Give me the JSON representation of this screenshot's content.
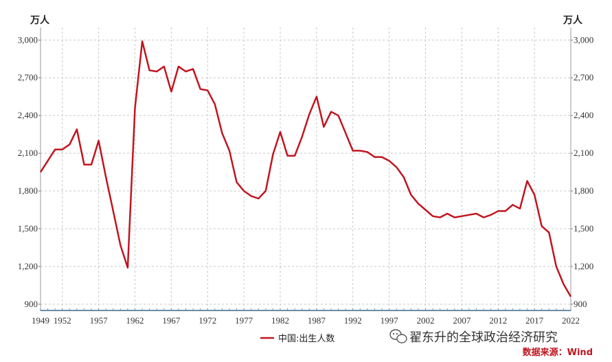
{
  "chart_data": {
    "type": "line",
    "unit_left": "万人",
    "unit_right": "万人",
    "ylim": [
      850,
      3100
    ],
    "xlim": [
      1949,
      2022
    ],
    "y_ticks": [
      900,
      1200,
      1500,
      1800,
      2100,
      2400,
      2700,
      3000
    ],
    "y_tick_labels": [
      "900",
      "1,200",
      "1,500",
      "1,800",
      "2,100",
      "2,400",
      "2,700",
      "3,000"
    ],
    "x_ticks": [
      1949,
      1952,
      1957,
      1962,
      1967,
      1972,
      1977,
      1982,
      1987,
      1992,
      1997,
      2002,
      2007,
      2012,
      2017,
      2022
    ],
    "x_tick_labels": [
      "1949",
      "1952",
      "1957",
      "1962",
      "1967",
      "1972",
      "1977",
      "1982",
      "1987",
      "1992",
      "1997",
      "2002",
      "2007",
      "2012",
      "2017",
      "2022"
    ],
    "grid": true,
    "legend_position": "bottom-center",
    "series": [
      {
        "name": "中国:出生人数",
        "color": "#c0151f",
        "x": [
          1949,
          1950,
          1951,
          1952,
          1953,
          1954,
          1955,
          1956,
          1957,
          1958,
          1959,
          1960,
          1961,
          1962,
          1963,
          1964,
          1965,
          1966,
          1967,
          1968,
          1969,
          1970,
          1971,
          1972,
          1973,
          1974,
          1975,
          1976,
          1977,
          1978,
          1979,
          1980,
          1981,
          1982,
          1983,
          1984,
          1985,
          1986,
          1987,
          1988,
          1989,
          1990,
          1991,
          1992,
          1993,
          1994,
          1995,
          1996,
          1997,
          1998,
          1999,
          2000,
          2001,
          2002,
          2003,
          2004,
          2005,
          2006,
          2007,
          2008,
          2009,
          2010,
          2011,
          2012,
          2013,
          2014,
          2015,
          2016,
          2017,
          2018,
          2019,
          2020,
          2021,
          2022
        ],
        "values": [
          1950,
          2040,
          2130,
          2130,
          2170,
          2290,
          2010,
          2010,
          2200,
          1910,
          1640,
          1370,
          1190,
          2460,
          2990,
          2760,
          2750,
          2790,
          2590,
          2790,
          2750,
          2770,
          2610,
          2600,
          2490,
          2260,
          2120,
          1870,
          1800,
          1760,
          1740,
          1800,
          2090,
          2270,
          2080,
          2080,
          2230,
          2410,
          2550,
          2310,
          2430,
          2400,
          2260,
          2120,
          2120,
          2110,
          2070,
          2070,
          2040,
          1990,
          1910,
          1770,
          1700,
          1650,
          1600,
          1590,
          1620,
          1590,
          1600,
          1610,
          1620,
          1590,
          1610,
          1640,
          1640,
          1690,
          1660,
          1880,
          1770,
          1520,
          1470,
          1200,
          1060,
          960
        ]
      }
    ]
  },
  "watermark_text": "翟东升的全球政治经济研究",
  "source_text": "数据来源：Wind"
}
